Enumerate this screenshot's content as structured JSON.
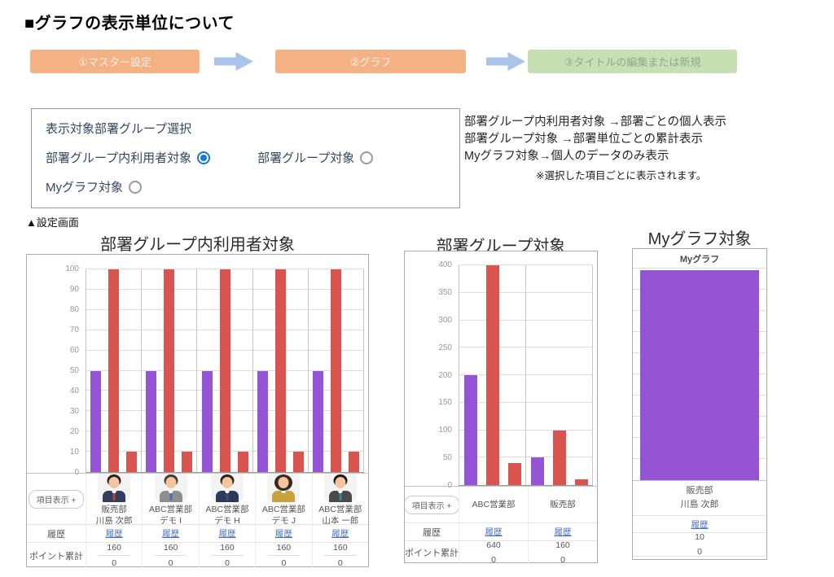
{
  "page": {
    "title": "■グラフの表示単位について",
    "caption": "▲設定画面"
  },
  "flow": {
    "steps": [
      {
        "label": "①マスター設定",
        "bg": "#f4b183",
        "fg": "#fdf1e7"
      },
      {
        "label": "②グラフ",
        "bg": "#f4b183",
        "fg": "#fdf1e7"
      },
      {
        "label": "③タイトルの編集または新規",
        "bg": "#c6e0b4",
        "fg": "#93a68c"
      }
    ],
    "arrow_color": "#a9c4e8"
  },
  "settings": {
    "title": "表示対象部署グループ選択",
    "options": [
      {
        "label": "部署グループ内利用者対象",
        "selected": true
      },
      {
        "label": "部署グループ対象",
        "selected": false
      },
      {
        "label": "Myグラフ対象",
        "selected": false
      }
    ],
    "radio_selected_color": "#1976d2"
  },
  "description": {
    "lines": [
      "部署グループ内利用者対象 →部署ごとの個人表示",
      "部署グループ対象 →部署単位ごとの累計表示",
      "Myグラフ対象→個人のデータのみ表示"
    ],
    "note": "※選択した項目ごとに表示されます。"
  },
  "labels": {
    "item_display": "項目表示 +",
    "history": "履歴",
    "points_total": "ポイント累計"
  },
  "colors": {
    "purple": "#9454d4",
    "red": "#d9534f",
    "link_blue": "#4a6fbf"
  },
  "chart_data": [
    {
      "type": "bar",
      "title": "部署グループ内利用者対象",
      "ylim": [
        0,
        100
      ],
      "ytick_step": 10,
      "grid": true,
      "series_colors": [
        "#9454d4",
        "#d9534f",
        "#d9534f"
      ],
      "groups": [
        {
          "dept": "販売部",
          "name": "川島 次郎",
          "values": [
            50,
            100,
            10
          ],
          "history": "履歴",
          "points": [
            160,
            0
          ],
          "avatar": {
            "suit": "#303d5c",
            "tie": "#c13b3b",
            "hair": "#2e2218",
            "female": false
          }
        },
        {
          "dept": "ABC営業部",
          "name": "デモ I",
          "values": [
            50,
            100,
            10
          ],
          "history": "履歴",
          "points": [
            160,
            0
          ],
          "avatar": {
            "suit": "#8e8e8e",
            "tie": "#4a6fbf",
            "hair": "#4a3b2d",
            "female": false
          }
        },
        {
          "dept": "ABC営業部",
          "name": "デモ H",
          "values": [
            50,
            100,
            10
          ],
          "history": "履歴",
          "points": [
            160,
            0
          ],
          "avatar": {
            "suit": "#2d3a57",
            "tie": "#35508e",
            "hair": "#2e2218",
            "female": false
          }
        },
        {
          "dept": "ABC営業部",
          "name": "デモ J",
          "values": [
            50,
            100,
            10
          ],
          "history": "履歴",
          "points": [
            160,
            0
          ],
          "avatar": {
            "suit": "#c9a23f",
            "tie": "#c9a23f",
            "hair": "#3a2a1e",
            "female": true
          }
        },
        {
          "dept": "ABC営業部",
          "name": "山本 一郎",
          "values": [
            50,
            100,
            10
          ],
          "history": "履歴",
          "points": [
            160,
            0
          ],
          "avatar": {
            "suit": "#4a4a4a",
            "tie": "#2e8b8b",
            "hair": "#1e1712",
            "female": false
          }
        }
      ]
    },
    {
      "type": "bar",
      "title": "部署グループ対象",
      "ylim": [
        0,
        400
      ],
      "ytick_step": 50,
      "grid": true,
      "series_colors": [
        "#9454d4",
        "#d9534f",
        "#d9534f"
      ],
      "groups": [
        {
          "name": "ABC営業部",
          "values": [
            200,
            400,
            40
          ],
          "history": "履歴",
          "points": [
            640,
            0
          ]
        },
        {
          "name": "販売部",
          "values": [
            50,
            100,
            10
          ],
          "history": "履歴",
          "points": [
            160,
            0
          ]
        }
      ]
    },
    {
      "type": "bar",
      "title": "Myグラフ対象",
      "panel_header": "Myグラフ",
      "bar_color": "#9454d4",
      "bar_fill_ratio": 1.0,
      "gridline_count": 10,
      "groups": [
        {
          "dept": "販売部",
          "name": "川島 次郎",
          "values": [
            100
          ],
          "history": "履歴",
          "points": [
            10,
            0
          ]
        }
      ]
    }
  ]
}
